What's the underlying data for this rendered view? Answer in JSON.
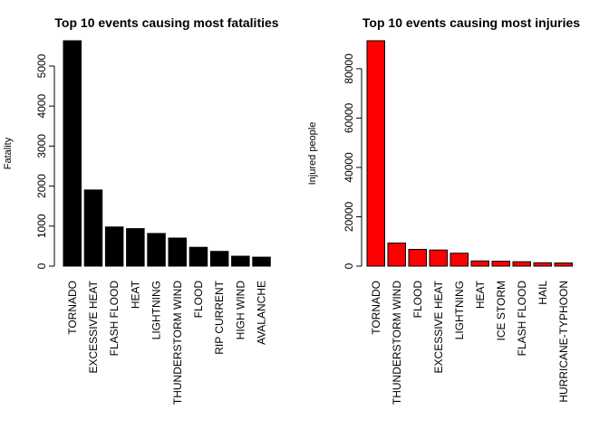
{
  "chart_data": [
    {
      "type": "bar",
      "title": "Top 10 events causing most fatalities",
      "xlabel": "",
      "ylabel": "Fatality",
      "categories": [
        "TORNADO",
        "EXCESSIVE HEAT",
        "FLASH FLOOD",
        "HEAT",
        "LIGHTNING",
        "THUNDERSTORM WIND",
        "FLOOD",
        "RIP CURRENT",
        "HIGH WIND",
        "AVALANCHE"
      ],
      "values": [
        5633,
        1903,
        978,
        937,
        816,
        701,
        470,
        368,
        248,
        224
      ],
      "ylim": [
        0,
        5633
      ],
      "yticks": [
        0,
        1000,
        2000,
        3000,
        4000,
        5000
      ],
      "bar_color": "#000000",
      "grid": false
    },
    {
      "type": "bar",
      "title": "Top 10 events causing most injuries",
      "xlabel": "",
      "ylabel": "Injured people",
      "categories": [
        "TORNADO",
        "THUNDERSTORM WIND",
        "FLOOD",
        "EXCESSIVE HEAT",
        "LIGHTNING",
        "HEAT",
        "ICE STORM",
        "FLASH FLOOD",
        "HAIL",
        "HURRICANE-TYPHOON"
      ],
      "values": [
        91346,
        9353,
        6789,
        6525,
        5230,
        2100,
        1975,
        1777,
        1361,
        1275
      ],
      "ylim": [
        0,
        91346
      ],
      "yticks": [
        0,
        20000,
        40000,
        60000,
        80000
      ],
      "bar_color": "#ff0000",
      "grid": false
    }
  ]
}
